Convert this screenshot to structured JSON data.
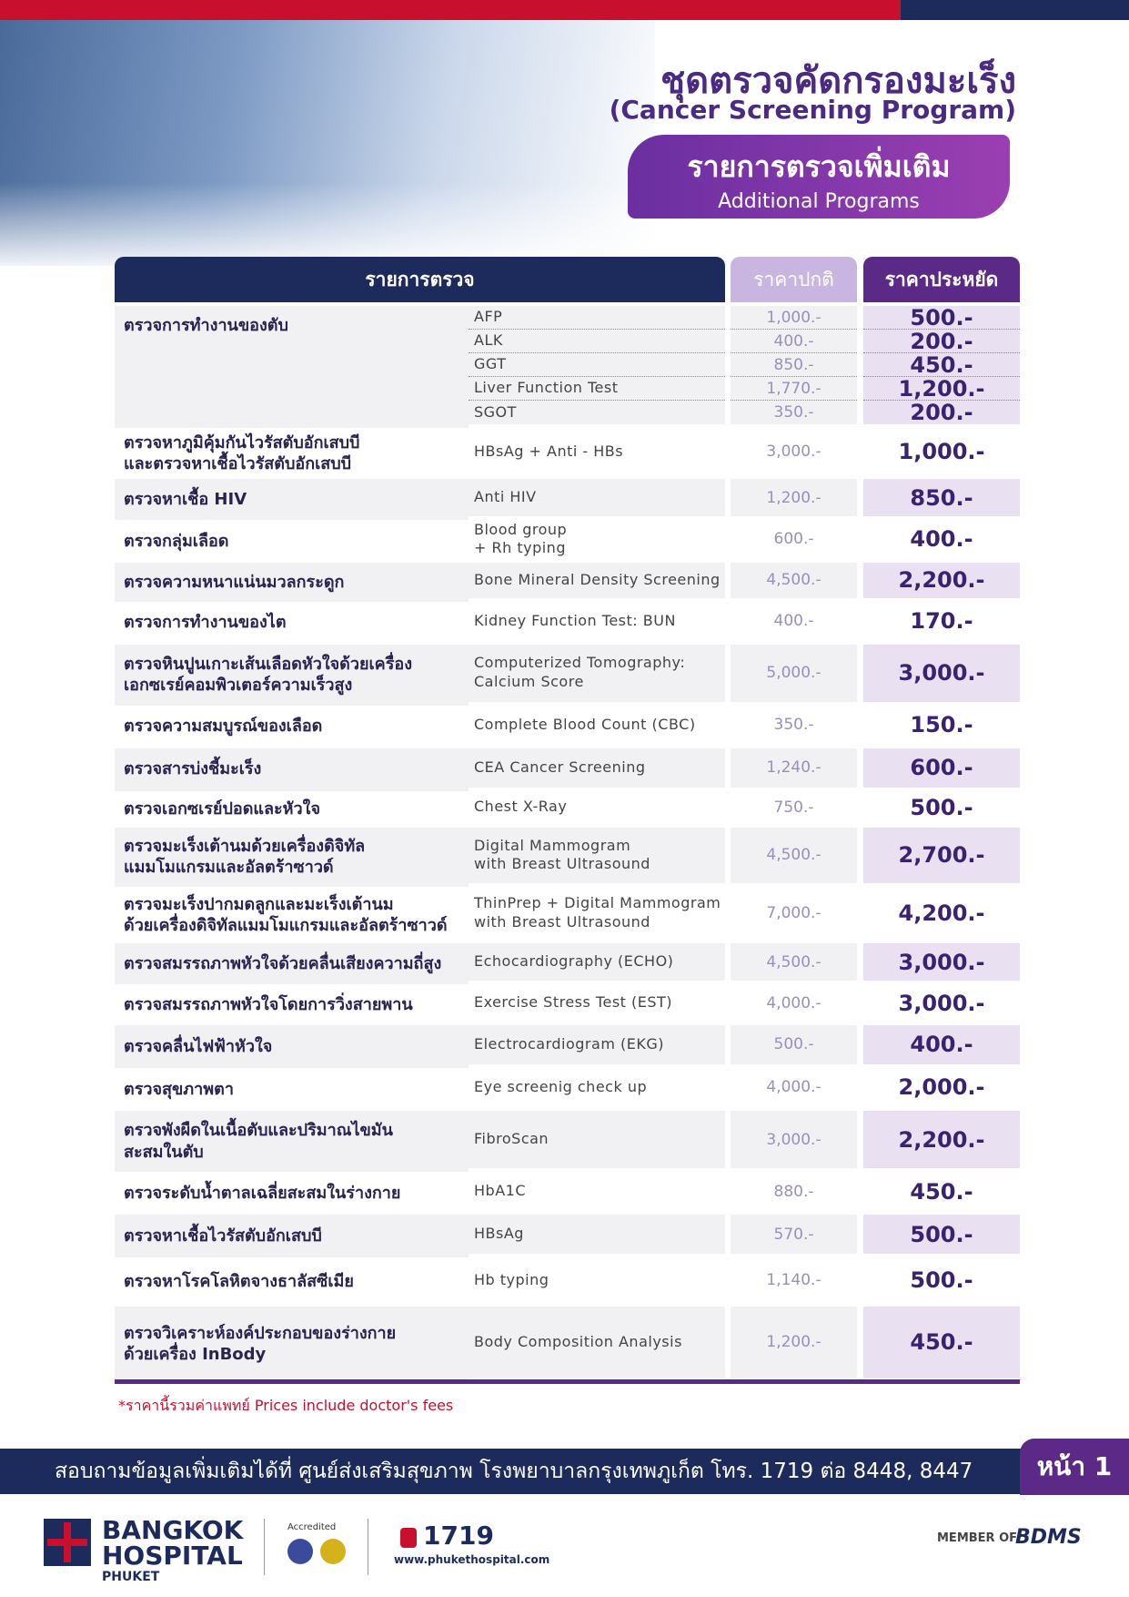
{
  "header": {
    "title": "ชุดตรวจคัดกรองมะเร็ง",
    "subtitle": "(Cancer Screening Program)",
    "badge_title": "รายการตรวจเพิ่มเติม",
    "badge_subtitle": "Additional Programs"
  },
  "table": {
    "columns": [
      "รายการตรวจ",
      "ราคาปกติ",
      "ราคาประหยัด"
    ],
    "rows": [
      {
        "name": "ตรวจการทำงานของตับ",
        "items": [
          {
            "test": "AFP",
            "normal": "1,000.-",
            "special": "500.-"
          },
          {
            "test": "ALK",
            "normal": "400.-",
            "special": "200.-"
          },
          {
            "test": "GGT",
            "normal": "850.-",
            "special": "450.-"
          },
          {
            "test": "Liver Function Test",
            "normal": "1,770.-",
            "special": "1,200.-"
          },
          {
            "test": "SGOT",
            "normal": "350.-",
            "special": "200.-"
          }
        ]
      },
      {
        "name": "ตรวจหาภูมิคุ้มกันไวรัสตับอักเสบบี\nและตรวจหาเชื้อไวรัสตับอักเสบบี",
        "items": [
          {
            "test": "HBsAg + Anti - HBs",
            "normal": "3,000.-",
            "special": "1,000.-"
          }
        ]
      },
      {
        "name": "ตรวจหาเชื้อ HIV",
        "items": [
          {
            "test": "Anti HIV",
            "normal": "1,200.-",
            "special": "850.-"
          }
        ]
      },
      {
        "name": "ตรวจกลุ่มเลือด",
        "items": [
          {
            "test": "Blood group\n+ Rh typing",
            "normal": "600.-",
            "special": "400.-"
          }
        ]
      },
      {
        "name": "ตรวจความหนาแน่นมวลกระดูก",
        "items": [
          {
            "test": "Bone Mineral Density Screening",
            "normal": "4,500.-",
            "special": "2,200.-"
          }
        ]
      },
      {
        "name": "ตรวจการทำงานของไต",
        "items": [
          {
            "test": "Kidney Function Test: BUN",
            "normal": "400.-",
            "special": "170.-"
          }
        ]
      },
      {
        "name": "ตรวจหินปูนเกาะเส้นเลือดหัวใจด้วยเครื่อง\nเอกซเรย์คอมพิวเตอร์ความเร็วสูง",
        "items": [
          {
            "test": "Computerized Tomography:\nCalcium Score",
            "normal": "5,000.-",
            "special": "3,000.-"
          }
        ]
      },
      {
        "name": "ตรวจความสมบูรณ์ของเลือด",
        "items": [
          {
            "test": "Complete Blood Count (CBC)",
            "normal": "350.-",
            "special": "150.-"
          }
        ]
      },
      {
        "name": "ตรวจสารบ่งชี้มะเร็ง",
        "items": [
          {
            "test": "CEA Cancer Screening",
            "normal": "1,240.-",
            "special": "600.-"
          }
        ]
      },
      {
        "name": "ตรวจเอกซเรย์ปอดและหัวใจ",
        "items": [
          {
            "test": "Chest X-Ray",
            "normal": "750.-",
            "special": "500.-"
          }
        ]
      },
      {
        "name": "ตรวจมะเร็งเต้านมด้วยเครื่องดิจิทัล\nแมมโมแกรมและอัลตร้าซาวด์",
        "items": [
          {
            "test": "Digital Mammogram\nwith Breast Ultrasound",
            "normal": "4,500.-",
            "special": "2,700.-"
          }
        ]
      },
      {
        "name": "ตรวจมะเร็งปากมดลูกและมะเร็งเต้านม\nด้วยเครื่องดิจิทัลแมมโมแกรมและอัลตร้าซาวด์",
        "items": [
          {
            "test": "ThinPrep + Digital Mammogram\nwith Breast Ultrasound",
            "normal": "7,000.-",
            "special": "4,200.-"
          }
        ]
      },
      {
        "name": "ตรวจสมรรถภาพหัวใจด้วยคลื่นเสียงความถี่สูง",
        "items": [
          {
            "test": "Echocardiography (ECHO)",
            "normal": "4,500.-",
            "special": "3,000.-"
          }
        ]
      },
      {
        "name": "ตรวจสมรรถภาพหัวใจโดยการวิ่งสายพาน",
        "items": [
          {
            "test": "Exercise Stress Test (EST)",
            "normal": "4,000.-",
            "special": "3,000.-"
          }
        ]
      },
      {
        "name": "ตรวจคลื่นไฟฟ้าหัวใจ",
        "items": [
          {
            "test": "Electrocardiogram (EKG)",
            "normal": "500.-",
            "special": "400.-"
          }
        ]
      },
      {
        "name": "ตรวจสุขภาพตา",
        "items": [
          {
            "test": "Eye screenig check up",
            "normal": "4,000.-",
            "special": "2,000.-"
          }
        ]
      },
      {
        "name": "ตรวจพังผืดในเนื้อตับและปริมาณไขมัน\nสะสมในตับ",
        "items": [
          {
            "test": "FibroScan",
            "normal": "3,000.-",
            "special": "2,200.-"
          }
        ]
      },
      {
        "name": "ตรวจระดับน้ำตาลเฉลี่ยสะสมในร่างกาย",
        "items": [
          {
            "test": "HbA1C",
            "normal": "880.-",
            "special": "450.-"
          }
        ]
      },
      {
        "name": "ตรวจหาเชื้อไวรัสตับอักเสบบี",
        "items": [
          {
            "test": "HBsAg",
            "normal": "570.-",
            "special": "500.-"
          }
        ]
      },
      {
        "name": "ตรวจหาโรคโลหิตจางธาลัสซีเมีย",
        "items": [
          {
            "test": "Hb typing",
            "normal": "1,140.-",
            "special": "500.-"
          }
        ]
      },
      {
        "name": "ตรวจวิเคราะห์องค์ประกอบของร่างกาย\nด้วยเครื่อง InBody",
        "items": [
          {
            "test": "Body Composition Analysis",
            "normal": "1,200.-",
            "special": "450.-"
          }
        ]
      }
    ]
  },
  "footer": {
    "note": "*ราคานี้รวมค่าแพทย์  Prices include doctor's fees",
    "contact": "สอบถามข้อมูลเพิ่มเติมได้ที่ ศูนย์ส่งเสริมสุขภาพ โรงพยาบาลกรุงเทพภูเก็ต โทร. 1719 ต่อ 8448, 8447",
    "page": "หน้า 1",
    "logo_line1": "BANGKOK",
    "logo_line2": "HOSPITAL",
    "logo_line3": "PHUKET",
    "accredited": "Accredited",
    "phone": "1719",
    "website": "www.phukethospital.com",
    "member": "MEMBER OF",
    "group": "BDMS"
  }
}
